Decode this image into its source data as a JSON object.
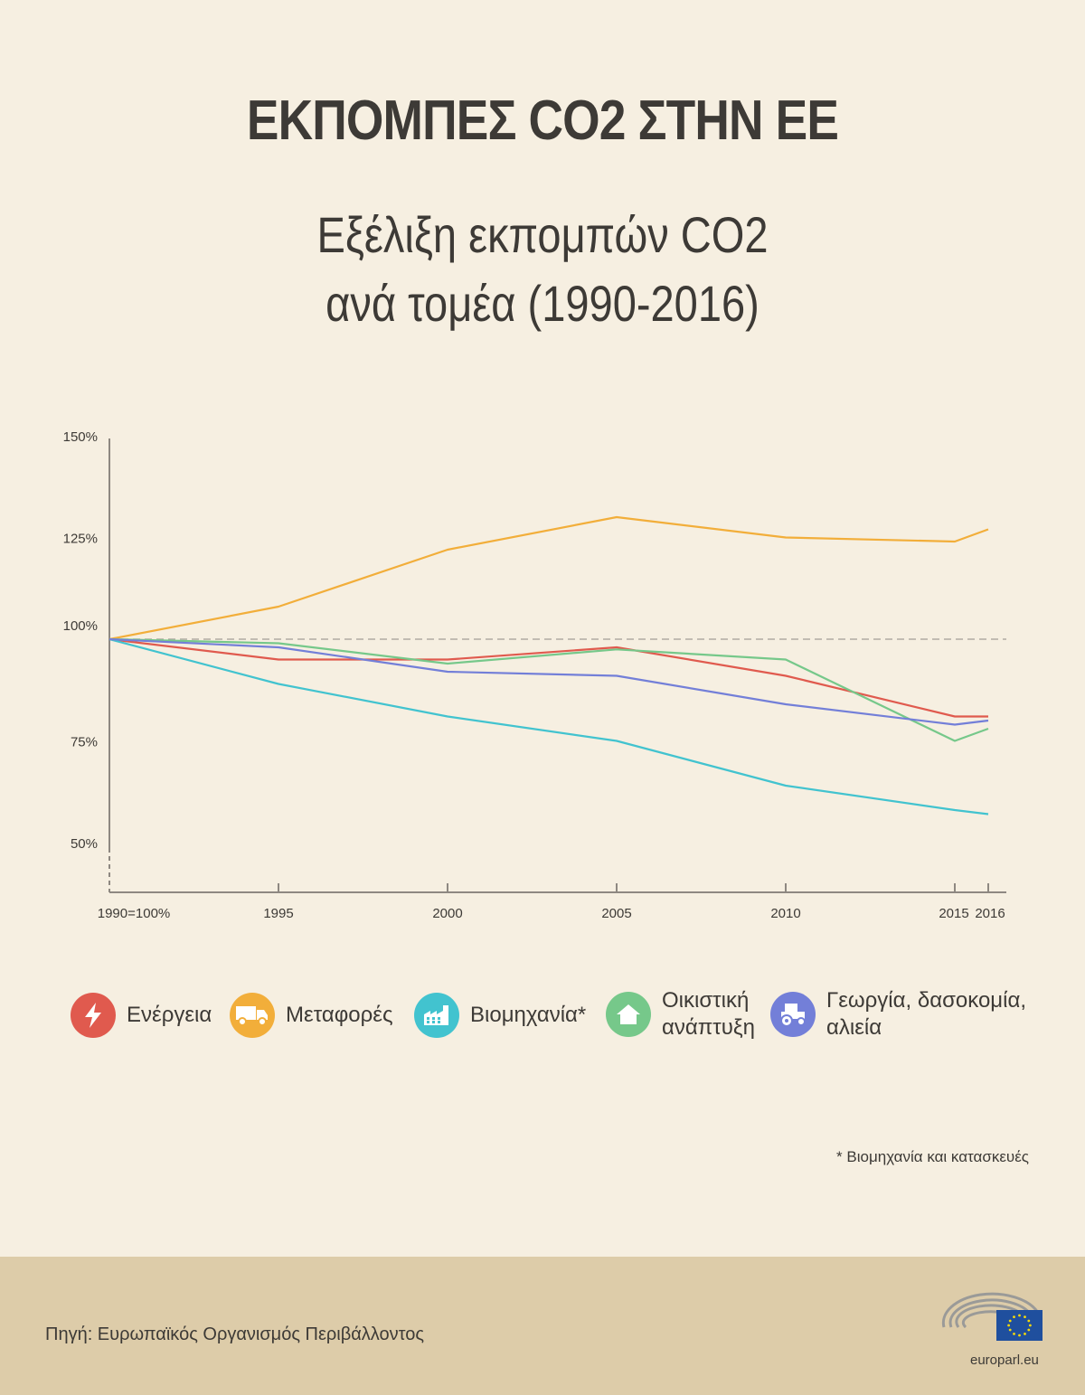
{
  "header": {
    "title": "ΕΚΠΟΜΠΕΣ CO2 ΣΤΗΝ ΕΕ",
    "subtitle_line1": "Εξέλιξη εκπομπών CO2",
    "subtitle_line2": "ανά τομέα (1990-2016)"
  },
  "chart_data": {
    "type": "line",
    "title": "Εξέλιξη εκπομπών CO2 ανά τομέα (1990-2016)",
    "xlabel": "",
    "ylabel": "",
    "x": [
      "1990",
      "1995",
      "2000",
      "2005",
      "2010",
      "2015",
      "2016"
    ],
    "x_tick_labels": [
      "1990=100%",
      "1995",
      "2000",
      "2005",
      "2010",
      "2015",
      "2016"
    ],
    "y_ticks": [
      150,
      125,
      100,
      75,
      50
    ],
    "y_tick_labels": [
      "150%",
      "125%",
      "100%",
      "75%",
      "50%"
    ],
    "ylim": [
      35,
      150
    ],
    "baseline": 100,
    "grid": false,
    "legend_position": "bottom",
    "series": [
      {
        "name": "Ενέργεια",
        "color": "#e05a4e",
        "values": [
          100,
          95,
          95,
          98,
          91,
          81,
          81
        ]
      },
      {
        "name": "Μεταφορές",
        "color": "#f2ae3a",
        "values": [
          100,
          108,
          122,
          130,
          125,
          124,
          127
        ]
      },
      {
        "name": "Βιομηχανία*",
        "color": "#42c3cf",
        "values": [
          100,
          89,
          81,
          75,
          64,
          58,
          57
        ]
      },
      {
        "name": "Οικιστική ανάπτυξη",
        "color": "#76c88a",
        "values": [
          100,
          99,
          94,
          97.5,
          95,
          75,
          78
        ]
      },
      {
        "name": "Γεωργία, δασοκομία, αλιεία",
        "color": "#737fd8",
        "values": [
          100,
          98,
          92,
          91,
          84,
          79,
          80
        ]
      }
    ]
  },
  "legend": {
    "items": [
      {
        "label": "Ενέργεια",
        "icon": "lightning-icon",
        "color": "#e05a4e"
      },
      {
        "label": "Μεταφορές",
        "icon": "truck-icon",
        "color": "#f2ae3a"
      },
      {
        "label": "Βιομηχανία*",
        "icon": "factory-icon",
        "color": "#42c3cf"
      },
      {
        "label_line1": "Οικιστική",
        "label_line2": "ανάπτυξη",
        "icon": "house-icon",
        "color": "#76c88a"
      },
      {
        "label_line1": "Γεωργία, δασοκομία,",
        "label_line2": "αλιεία",
        "icon": "tractor-icon",
        "color": "#737fd8"
      }
    ]
  },
  "footnote": "* Βιομηχανία και κατασκευές",
  "footer": {
    "source": "Πηγή: Ευρωπαϊκός Οργανισμός Περιβάλλοντος",
    "logo_text": "europarl.eu"
  }
}
